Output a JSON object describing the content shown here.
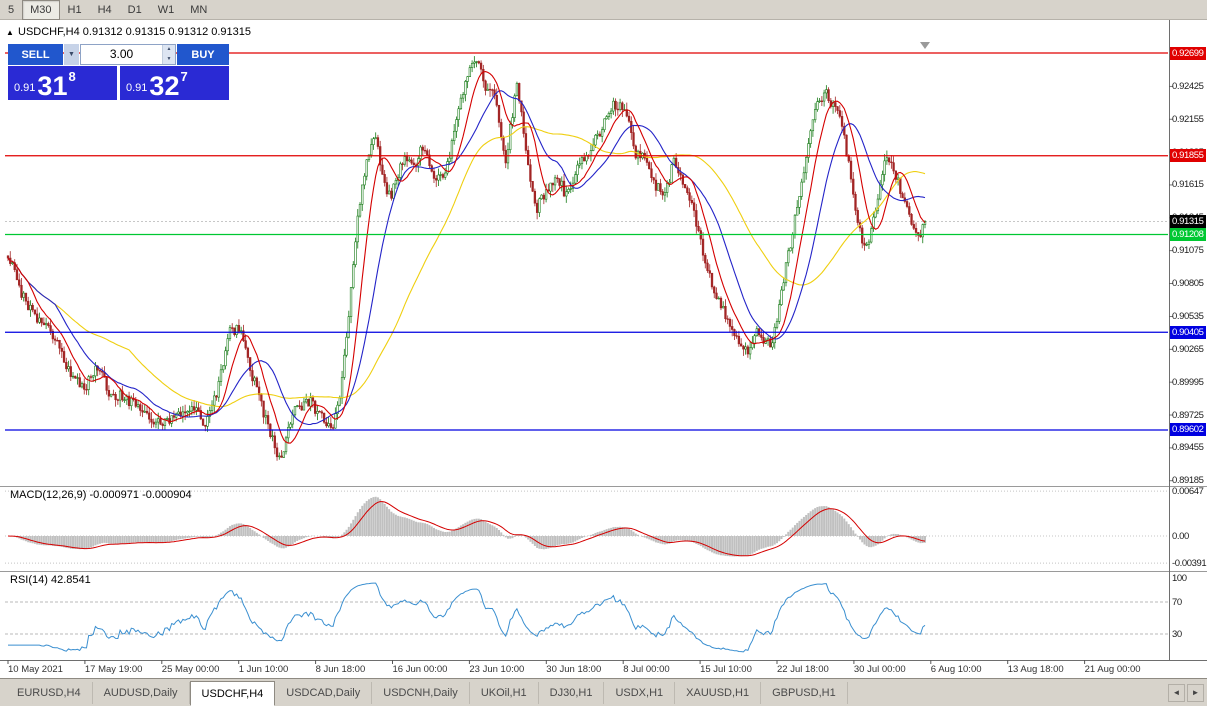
{
  "icons": {
    "collapse": "▲",
    "dropdown_down": "▼",
    "spin_up": "▲",
    "spin_down": "▼",
    "scroll_left": "◄",
    "scroll_right": "►"
  },
  "toolbar": {
    "timeframes": [
      {
        "label": "5",
        "active": false
      },
      {
        "label": "M30",
        "active": true
      },
      {
        "label": "H1",
        "active": false
      },
      {
        "label": "H4",
        "active": false
      },
      {
        "label": "D1",
        "active": false
      },
      {
        "label": "W1",
        "active": false
      },
      {
        "label": "MN",
        "active": false
      }
    ]
  },
  "chart": {
    "title": "USDCHF,H4  0.91312 0.91315 0.91312 0.91315"
  },
  "one_click": {
    "sell_label": "SELL",
    "buy_label": "BUY",
    "volume": "3.00",
    "sell_price": {
      "prefix": "0.91",
      "big": "31",
      "sup": "8"
    },
    "buy_price": {
      "prefix": "0.91",
      "big": "32",
      "sup": "7"
    }
  },
  "indicators": {
    "macd": {
      "display": "MACD(12,26,9) -0.000971 -0.000904"
    },
    "rsi": {
      "display": "RSI(14) 42.8541"
    }
  },
  "time_axis": [
    "10 May 2021",
    "17 May 19:00",
    "25 May 00:00",
    "1 Jun 10:00",
    "8 Jun 18:00",
    "16 Jun 00:00",
    "23 Jun 10:00",
    "30 Jun 18:00",
    "8 Jul 00:00",
    "15 Jul 10:00",
    "22 Jul 18:00",
    "30 Jul 00:00",
    "6 Aug 10:00",
    "13 Aug 18:00",
    "21 Aug 00:00"
  ],
  "tabs": [
    {
      "label": "EURUSD,H4",
      "active": false
    },
    {
      "label": "AUDUSD,Daily",
      "active": false
    },
    {
      "label": "USDCHF,H4",
      "active": true
    },
    {
      "label": "USDCAD,Daily",
      "active": false
    },
    {
      "label": "USDCNH,Daily",
      "active": false
    },
    {
      "label": "UKOil,H1",
      "active": false
    },
    {
      "label": "DJ30,H1",
      "active": false
    },
    {
      "label": "USDX,H1",
      "active": false
    },
    {
      "label": "XAUUSD,H1",
      "active": false
    },
    {
      "label": "GBPUSD,H1",
      "active": false
    }
  ],
  "chart_data": {
    "type": "candlestick",
    "symbol": "USDCHF",
    "period": "H4",
    "ohlc": [
      0.91312,
      0.91315,
      0.91312,
      0.91315
    ],
    "current_bid": 0.91315,
    "up_color": "#157a15",
    "down_color": "#a22424",
    "price_axis_ticks": [
      0.92425,
      0.92155,
      0.91885,
      0.91615,
      0.91345,
      0.91075,
      0.90805,
      0.90535,
      0.90265,
      0.89995,
      0.89725,
      0.89455,
      0.89185
    ],
    "horizontal_levels": [
      {
        "price": 0.92699,
        "color": "#e00000"
      },
      {
        "price": 0.91855,
        "color": "#e00000"
      },
      {
        "price": 0.91208,
        "color": "#00c832"
      },
      {
        "price": 0.90405,
        "color": "#0000e0"
      },
      {
        "price": 0.89602,
        "color": "#0000e0"
      }
    ],
    "moving_averages": [
      {
        "period": 10,
        "color": "#d40000"
      },
      {
        "period": 22,
        "color": "#2424c8"
      },
      {
        "period": 55,
        "color": "#efcf10"
      }
    ],
    "macd": {
      "fast": 12,
      "slow": 26,
      "signal": 9,
      "current_macd": -0.000971,
      "current_signal": -0.000904,
      "axis_labels": [
        "0.00647",
        "0.00",
        "-0.00391"
      ],
      "histogram_color": "#c0c0c0",
      "signal_color": "#d40000"
    },
    "rsi": {
      "period": 14,
      "current": 42.8541,
      "axis_labels": [
        "100",
        "70",
        "30"
      ],
      "levels": [
        70,
        30
      ],
      "color": "#3a8fd0"
    },
    "price_waypoints": [
      [
        0.0,
        0.9105
      ],
      [
        0.013,
        0.9076
      ],
      [
        0.028,
        0.9053
      ],
      [
        0.042,
        0.9046
      ],
      [
        0.056,
        0.9028
      ],
      [
        0.07,
        0.9002
      ],
      [
        0.085,
        0.8996
      ],
      [
        0.097,
        0.9012
      ],
      [
        0.11,
        0.8992
      ],
      [
        0.128,
        0.8986
      ],
      [
        0.148,
        0.8976
      ],
      [
        0.168,
        0.8964
      ],
      [
        0.185,
        0.8972
      ],
      [
        0.2,
        0.8981
      ],
      [
        0.215,
        0.8964
      ],
      [
        0.228,
        0.8992
      ],
      [
        0.242,
        0.904
      ],
      [
        0.252,
        0.9044
      ],
      [
        0.265,
        0.9008
      ],
      [
        0.28,
        0.8972
      ],
      [
        0.297,
        0.8934
      ],
      [
        0.312,
        0.8976
      ],
      [
        0.328,
        0.8984
      ],
      [
        0.342,
        0.8972
      ],
      [
        0.352,
        0.8958
      ],
      [
        0.362,
        0.8984
      ],
      [
        0.372,
        0.9058
      ],
      [
        0.381,
        0.9132
      ],
      [
        0.39,
        0.9178
      ],
      [
        0.4,
        0.9208
      ],
      [
        0.409,
        0.9164
      ],
      [
        0.418,
        0.9152
      ],
      [
        0.43,
        0.9182
      ],
      [
        0.442,
        0.9176
      ],
      [
        0.452,
        0.9192
      ],
      [
        0.465,
        0.9167
      ],
      [
        0.478,
        0.9172
      ],
      [
        0.49,
        0.9222
      ],
      [
        0.502,
        0.9252
      ],
      [
        0.511,
        0.9266
      ],
      [
        0.521,
        0.9242
      ],
      [
        0.531,
        0.9236
      ],
      [
        0.542,
        0.9178
      ],
      [
        0.555,
        0.9246
      ],
      [
        0.567,
        0.918
      ],
      [
        0.576,
        0.9142
      ],
      [
        0.588,
        0.9156
      ],
      [
        0.598,
        0.9168
      ],
      [
        0.61,
        0.9152
      ],
      [
        0.624,
        0.918
      ],
      [
        0.636,
        0.9192
      ],
      [
        0.648,
        0.9208
      ],
      [
        0.66,
        0.9228
      ],
      [
        0.672,
        0.9226
      ],
      [
        0.684,
        0.9188
      ],
      [
        0.695,
        0.9186
      ],
      [
        0.705,
        0.9162
      ],
      [
        0.716,
        0.9155
      ],
      [
        0.726,
        0.918
      ],
      [
        0.738,
        0.9158
      ],
      [
        0.748,
        0.914
      ],
      [
        0.758,
        0.9108
      ],
      [
        0.768,
        0.908
      ],
      [
        0.778,
        0.9062
      ],
      [
        0.79,
        0.9044
      ],
      [
        0.8,
        0.903
      ],
      [
        0.809,
        0.9026
      ],
      [
        0.818,
        0.9044
      ],
      [
        0.826,
        0.9032
      ],
      [
        0.833,
        0.903
      ],
      [
        0.843,
        0.9072
      ],
      [
        0.852,
        0.9108
      ],
      [
        0.862,
        0.915
      ],
      [
        0.872,
        0.919
      ],
      [
        0.882,
        0.9226
      ],
      [
        0.891,
        0.9238
      ],
      [
        0.9,
        0.9226
      ],
      [
        0.908,
        0.9218
      ],
      [
        0.916,
        0.9182
      ],
      [
        0.925,
        0.9136
      ],
      [
        0.934,
        0.911
      ],
      [
        0.941,
        0.912
      ],
      [
        0.948,
        0.915
      ],
      [
        0.956,
        0.918
      ],
      [
        0.964,
        0.9178
      ],
      [
        0.972,
        0.916
      ],
      [
        0.98,
        0.9146
      ],
      [
        0.988,
        0.9124
      ],
      [
        0.995,
        0.912
      ],
      [
        1.0,
        0.91315
      ]
    ]
  }
}
